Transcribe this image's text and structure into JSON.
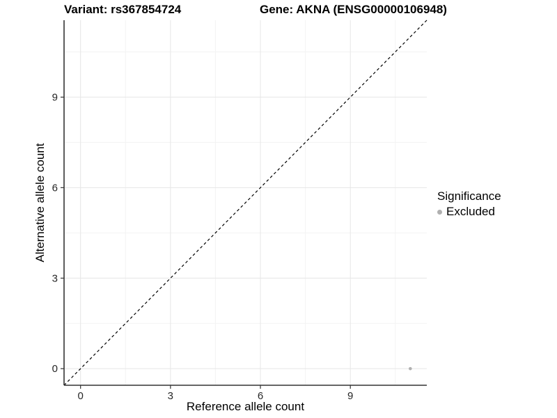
{
  "figure": {
    "title_left": "Variant: rs367854724",
    "title_right": "Gene: AKNA (ENSG00000106948)"
  },
  "legend": {
    "title": "Significance",
    "items": [
      {
        "label": "Excluded",
        "color": "#b0b0b0"
      }
    ]
  },
  "chart_data": {
    "type": "scatter",
    "title_left": "Variant: rs367854724",
    "title_right": "Gene: AKNA (ENSG00000106948)",
    "xlabel": "Reference allele count",
    "ylabel": "Alternative allele count",
    "xlim": [
      -0.55,
      11.55
    ],
    "ylim": [
      -0.55,
      11.55
    ],
    "xticks": [
      0,
      3,
      6,
      9
    ],
    "yticks": [
      0,
      3,
      6,
      9
    ],
    "x_minor_gridlines": [
      1.5,
      4.5,
      7.5,
      10.5
    ],
    "y_minor_gridlines": [
      1.5,
      4.5,
      7.5,
      10.5
    ],
    "grid": true,
    "legend_position": "right",
    "reference_line": {
      "kind": "identity",
      "slope": 1,
      "intercept": 0,
      "style": "dashed",
      "color": "#000000"
    },
    "series": [
      {
        "name": "Excluded",
        "color": "#b0b0b0",
        "points": [
          {
            "x": 11,
            "y": 0
          }
        ]
      }
    ],
    "colors": {
      "major_grid": "#e6e6e6",
      "minor_grid": "#f3f3f3",
      "axis_line": "#333333",
      "tick_mark": "#333333",
      "tick_label": "#262626"
    }
  }
}
